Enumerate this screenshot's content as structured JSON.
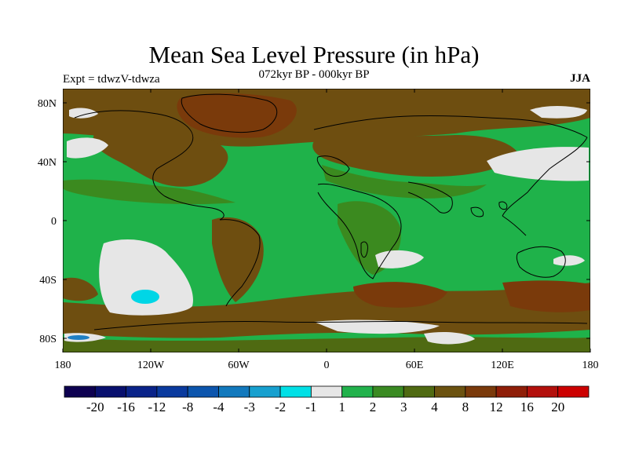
{
  "header": {
    "title": "Mean Sea Level Pressure (in hPa)",
    "subtitle": "072kyr BP - 000kyr BP",
    "experiment": "Expt = tdwzV-tdwza",
    "season": "JJA"
  },
  "map": {
    "lat_labels": [
      "80N",
      "40N",
      "0",
      "40S",
      "80S"
    ],
    "lon_labels": [
      "180",
      "120W",
      "60W",
      "0",
      "60E",
      "120E",
      "180"
    ],
    "colors": {
      "ocean_base": "#1fb24a",
      "mid_green": "#3b8a1f",
      "olive": "#4f6a12",
      "brown": "#6e4e10",
      "dark_brown": "#7a3a0b",
      "light_gray": "#e6e6e6",
      "cyan": "#00d6e6",
      "blue": "#1f7fc4"
    }
  },
  "colorbar": {
    "labels": [
      "-20",
      "-16",
      "-12",
      "-8",
      "-4",
      "-3",
      "-2",
      "-1",
      "1",
      "2",
      "3",
      "4",
      "8",
      "12",
      "16",
      "20"
    ],
    "colors": [
      "#0d0050",
      "#08106e",
      "#0a2389",
      "#0a3a9e",
      "#0c55ad",
      "#1279bd",
      "#17a0cf",
      "#00e0e6",
      "#e6e6e6",
      "#22b24c",
      "#3a8a22",
      "#4f6a12",
      "#6b5210",
      "#7a3a0b",
      "#8f1e08",
      "#b3100c",
      "#cc0000"
    ]
  }
}
